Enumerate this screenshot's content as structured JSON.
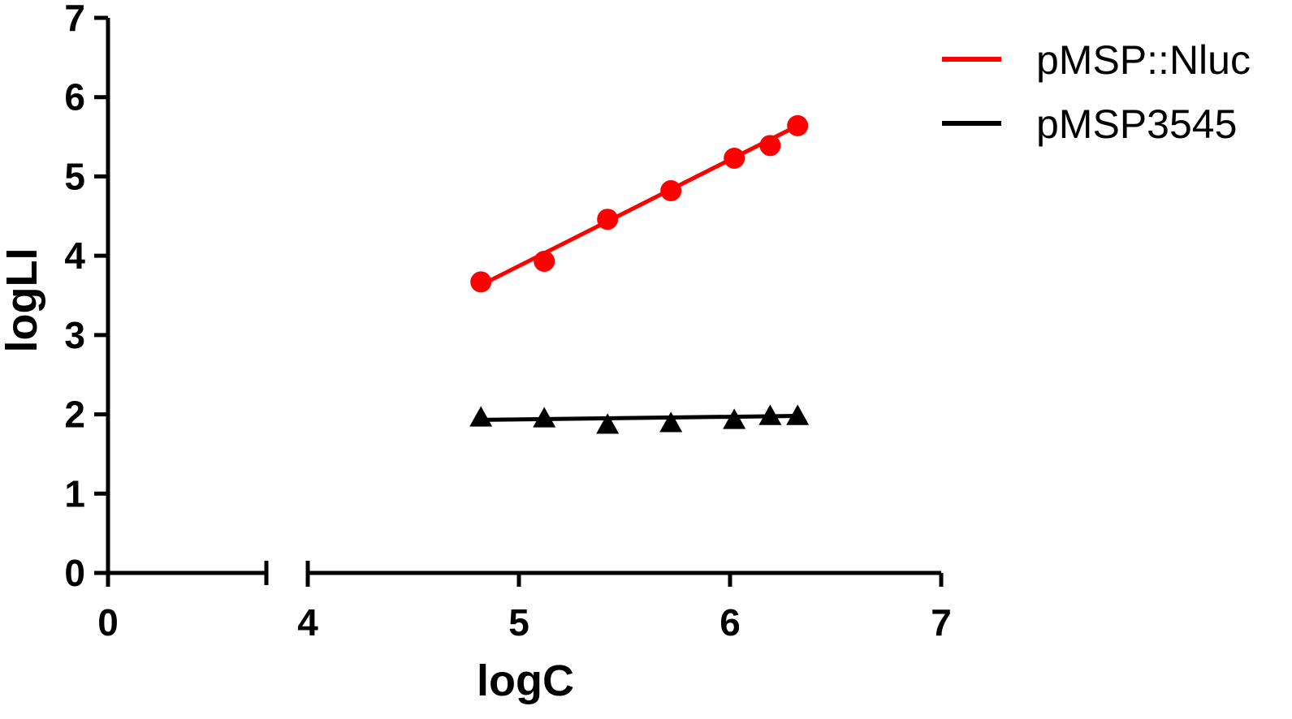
{
  "chart_data": {
    "type": "scatter",
    "xlabel": "logC",
    "ylabel": "logLI",
    "x_axis_segments": [
      {
        "range": [
          0,
          0.8
        ],
        "ticks": [
          0
        ]
      },
      {
        "range": [
          4,
          7
        ],
        "ticks": [
          4,
          5,
          6,
          7
        ]
      }
    ],
    "x_axis_broken": true,
    "ylim": [
      0,
      7
    ],
    "y_ticks": [
      0,
      1,
      2,
      3,
      4,
      5,
      6,
      7
    ],
    "grid": false,
    "legend_position": "top-right",
    "series": [
      {
        "name": "pMSP::Nluc",
        "color": "#ff0000",
        "marker": "circle",
        "x": [
          4.82,
          5.12,
          5.42,
          5.72,
          6.02,
          6.19,
          6.32
        ],
        "y": [
          3.67,
          3.93,
          4.46,
          4.82,
          5.23,
          5.39,
          5.64
        ],
        "fit": {
          "x": [
            4.82,
            6.32
          ],
          "y": [
            3.63,
            5.64
          ]
        }
      },
      {
        "name": "pMSP3545",
        "color": "#000000",
        "marker": "triangle",
        "x": [
          4.82,
          5.12,
          5.42,
          5.72,
          6.02,
          6.19,
          6.32
        ],
        "y": [
          1.96,
          1.95,
          1.87,
          1.89,
          1.93,
          1.98,
          1.98
        ],
        "fit": {
          "x": [
            4.82,
            6.32
          ],
          "y": [
            1.93,
            1.98
          ]
        }
      }
    ]
  }
}
